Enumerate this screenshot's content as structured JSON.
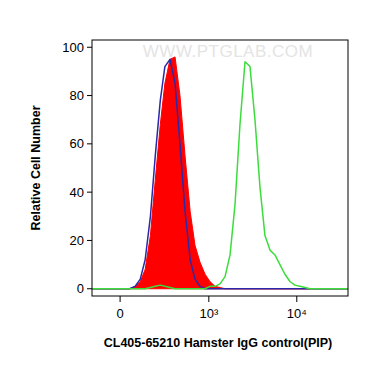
{
  "chart_data": {
    "type": "histogram",
    "x_label": "CL405-65210 Hamster IgG control(PIP)",
    "y_label": "Relative Cell Number",
    "annotations": [
      "WWW.PTGLAB.COM"
    ],
    "log": "x",
    "xlim": [
      -160,
      38000
    ],
    "xticks": [
      0,
      {
        "value": 1000,
        "label": "10³"
      },
      {
        "value": 10000,
        "label": "10⁴"
      }
    ],
    "ylim": [
      -3,
      103
    ],
    "yticks": [
      0,
      20,
      40,
      60,
      80,
      100
    ],
    "x": [
      50,
      80,
      110,
      140,
      175,
      210,
      250,
      290,
      340,
      395,
      455,
      525,
      605,
      690,
      790,
      905,
      1030,
      1180,
      1345,
      1535,
      1750,
      1995,
      2270,
      2590,
      2950,
      3360,
      3830,
      4360,
      4970,
      5660,
      6450,
      7340,
      8370,
      9530,
      10860,
      12370,
      14090,
      16050,
      18270
    ],
    "series": [
      {
        "type": "area",
        "color": "#ff0000",
        "values": [
          0,
          1,
          3,
          8,
          22,
          45,
          68,
          85,
          95,
          96,
          80,
          55,
          32,
          18,
          11,
          6,
          3,
          1,
          0.5,
          0,
          0,
          0,
          0,
          0,
          0,
          0,
          0,
          0,
          0,
          0,
          0,
          0,
          0,
          0,
          0,
          0,
          0,
          0,
          0
        ]
      },
      {
        "type": "line",
        "color": "#2a2aa8",
        "values": [
          0,
          1,
          4,
          12,
          30,
          55,
          78,
          92,
          95,
          85,
          60,
          32,
          12,
          4,
          1,
          0,
          0,
          0,
          0,
          0,
          0,
          0,
          0,
          0,
          0,
          0,
          0,
          0,
          0,
          0,
          0,
          0,
          0,
          0,
          0,
          0,
          0,
          0,
          0
        ]
      },
      {
        "type": "line",
        "color": "#3cdc3c",
        "values": [
          0,
          0,
          0,
          0,
          0.5,
          1,
          1.5,
          1,
          0.5,
          0,
          0,
          0,
          0,
          0,
          0,
          0,
          1,
          1,
          2,
          5,
          14,
          35,
          68,
          94,
          92,
          70,
          42,
          22,
          16,
          14,
          10,
          6,
          3,
          1.5,
          1,
          0.5,
          0,
          0,
          0
        ]
      }
    ]
  }
}
